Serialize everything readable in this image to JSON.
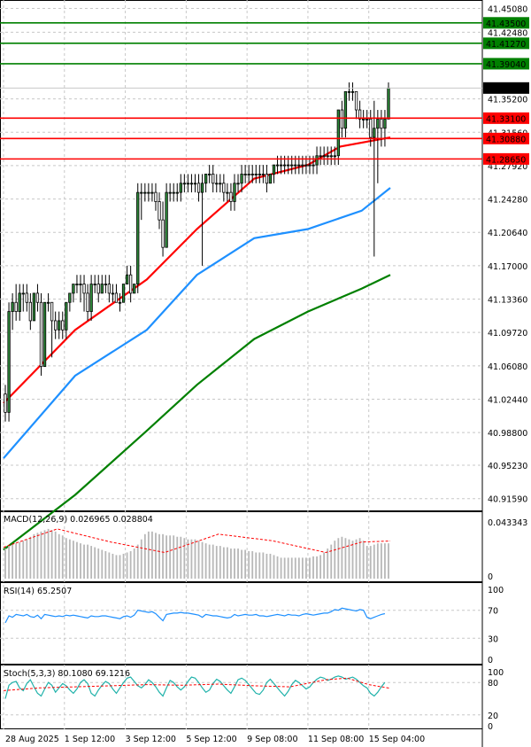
{
  "chart_data": [
    {
      "type": "candlestick",
      "panel": "price",
      "yticks": [
        41.4508,
        41.4248,
        41.352,
        41.3156,
        41.2792,
        41.2428,
        41.2064,
        41.17,
        41.1336,
        41.0972,
        41.0608,
        41.0244,
        40.988,
        40.9523,
        40.9159
      ],
      "yticks_text": [
        "41.45080",
        "41.42480",
        "41.35200",
        "41.31560",
        "41.27920",
        "41.24280",
        "41.20640",
        "41.17000",
        "41.13360",
        "41.09720",
        "41.06080",
        "41.02440",
        "40.98800",
        "40.95230",
        "40.91590"
      ],
      "ylim": [
        40.904,
        41.458
      ],
      "xlim": [
        0,
        108
      ],
      "xticks": [
        {
          "x": 0,
          "label": "28 Aug 2025"
        },
        {
          "x": 17,
          "label": "1 Sep 12:00"
        },
        {
          "x": 34,
          "label": "3 Sep 12:00"
        },
        {
          "x": 51,
          "label": "5 Sep 12:00"
        },
        {
          "x": 68,
          "label": "9 Sep 08:00"
        },
        {
          "x": 85,
          "label": "11 Sep 08:00"
        },
        {
          "x": 102,
          "label": "15 Sep 04:00"
        }
      ],
      "levels": [
        {
          "value": 41.435,
          "label": "41.43500",
          "color": "#008000"
        },
        {
          "value": 41.4127,
          "label": "41.41270",
          "color": "#008000"
        },
        {
          "value": 41.3904,
          "label": "41.39040",
          "color": "#008000"
        },
        {
          "value": 41.331,
          "label": "41.33100",
          "color": "#ff0000"
        },
        {
          "value": 41.3088,
          "label": "41.30880",
          "color": "#ff0000"
        },
        {
          "value": 41.2865,
          "label": "41.28650",
          "color": "#ff0000"
        }
      ],
      "current_price": {
        "value": 41.3639,
        "label": "41.36390"
      },
      "candles": [
        [
          41.03,
          41.04,
          41.0,
          41.01
        ],
        [
          41.01,
          41.13,
          41.0,
          41.12
        ],
        [
          41.12,
          41.14,
          41.1,
          41.13
        ],
        [
          41.13,
          41.15,
          41.11,
          41.12
        ],
        [
          41.12,
          41.15,
          41.11,
          41.14
        ],
        [
          41.14,
          41.15,
          41.12,
          41.14
        ],
        [
          41.14,
          41.15,
          41.12,
          41.13
        ],
        [
          41.13,
          41.14,
          41.1,
          41.11
        ],
        [
          41.11,
          41.14,
          41.11,
          41.14
        ],
        [
          41.14,
          41.15,
          41.12,
          41.13
        ],
        [
          41.13,
          41.14,
          41.05,
          41.06
        ],
        [
          41.06,
          41.13,
          41.06,
          41.13
        ],
        [
          41.13,
          41.14,
          41.12,
          41.13
        ],
        [
          41.13,
          41.13,
          41.07,
          41.11
        ],
        [
          41.11,
          41.12,
          41.09,
          41.1
        ],
        [
          41.1,
          41.12,
          41.09,
          41.11
        ],
        [
          41.11,
          41.12,
          41.09,
          41.1
        ],
        [
          41.1,
          41.13,
          41.09,
          41.13
        ],
        [
          41.13,
          41.14,
          41.12,
          41.14
        ],
        [
          41.14,
          41.15,
          41.13,
          41.15
        ],
        [
          41.15,
          41.16,
          41.14,
          41.15
        ],
        [
          41.15,
          41.16,
          41.13,
          41.15
        ],
        [
          41.15,
          41.16,
          41.12,
          41.14
        ],
        [
          41.14,
          41.15,
          41.11,
          41.12
        ],
        [
          41.12,
          41.16,
          41.11,
          41.15
        ],
        [
          41.15,
          41.16,
          41.14,
          41.15
        ],
        [
          41.15,
          41.16,
          41.13,
          41.14
        ],
        [
          41.14,
          41.16,
          41.14,
          41.15
        ],
        [
          41.15,
          41.16,
          41.14,
          41.15
        ],
        [
          41.15,
          41.16,
          41.13,
          41.14
        ],
        [
          41.14,
          41.15,
          41.13,
          41.14
        ],
        [
          41.14,
          41.15,
          41.13,
          41.13
        ],
        [
          41.13,
          41.14,
          41.12,
          41.13
        ],
        [
          41.13,
          41.15,
          41.13,
          41.15
        ],
        [
          41.15,
          41.17,
          41.15,
          41.16
        ],
        [
          41.16,
          41.17,
          41.13,
          41.14
        ],
        [
          41.14,
          41.15,
          41.14,
          41.15
        ],
        [
          41.15,
          41.26,
          41.14,
          41.25
        ],
        [
          41.25,
          41.26,
          41.22,
          41.25
        ],
        [
          41.25,
          41.26,
          41.24,
          41.25
        ],
        [
          41.25,
          41.26,
          41.24,
          41.25
        ],
        [
          41.25,
          41.26,
          41.24,
          41.25
        ],
        [
          41.25,
          41.26,
          41.23,
          41.24
        ],
        [
          41.24,
          41.25,
          41.21,
          41.22
        ],
        [
          41.22,
          41.24,
          41.18,
          41.19
        ],
        [
          41.19,
          41.26,
          41.19,
          41.25
        ],
        [
          41.25,
          41.26,
          41.24,
          41.25
        ],
        [
          41.25,
          41.26,
          41.24,
          41.25
        ],
        [
          41.25,
          41.26,
          41.24,
          41.25
        ],
        [
          41.25,
          41.27,
          41.24,
          41.26
        ],
        [
          41.26,
          41.27,
          41.25,
          41.26
        ],
        [
          41.26,
          41.27,
          41.25,
          41.26
        ],
        [
          41.26,
          41.27,
          41.25,
          41.26
        ],
        [
          41.26,
          41.27,
          41.25,
          41.26
        ],
        [
          41.26,
          41.27,
          41.24,
          41.25
        ],
        [
          41.25,
          41.27,
          41.17,
          41.26
        ],
        [
          41.26,
          41.27,
          41.25,
          41.27
        ],
        [
          41.27,
          41.28,
          41.26,
          41.27
        ],
        [
          41.27,
          41.28,
          41.25,
          41.26
        ],
        [
          41.26,
          41.27,
          41.25,
          41.26
        ],
        [
          41.26,
          41.27,
          41.25,
          41.26
        ],
        [
          41.26,
          41.27,
          41.24,
          41.25
        ],
        [
          41.25,
          41.26,
          41.24,
          41.25
        ],
        [
          41.25,
          41.26,
          41.23,
          41.24
        ],
        [
          41.24,
          41.27,
          41.23,
          41.26
        ],
        [
          41.26,
          41.27,
          41.25,
          41.26
        ],
        [
          41.26,
          41.28,
          41.25,
          41.27
        ],
        [
          41.27,
          41.28,
          41.26,
          41.27
        ],
        [
          41.27,
          41.28,
          41.26,
          41.27
        ],
        [
          41.27,
          41.28,
          41.26,
          41.27
        ],
        [
          41.27,
          41.28,
          41.26,
          41.27
        ],
        [
          41.27,
          41.28,
          41.26,
          41.27
        ],
        [
          41.27,
          41.28,
          41.26,
          41.27
        ],
        [
          41.27,
          41.28,
          41.25,
          41.26
        ],
        [
          41.26,
          41.27,
          41.26,
          41.27
        ],
        [
          41.27,
          41.28,
          41.26,
          41.28
        ],
        [
          41.28,
          41.29,
          41.27,
          41.28
        ],
        [
          41.28,
          41.29,
          41.27,
          41.28
        ],
        [
          41.28,
          41.29,
          41.27,
          41.28
        ],
        [
          41.28,
          41.29,
          41.27,
          41.28
        ],
        [
          41.28,
          41.29,
          41.27,
          41.28
        ],
        [
          41.28,
          41.29,
          41.27,
          41.28
        ],
        [
          41.28,
          41.29,
          41.27,
          41.28
        ],
        [
          41.28,
          41.29,
          41.27,
          41.28
        ],
        [
          41.28,
          41.29,
          41.27,
          41.28
        ],
        [
          41.28,
          41.29,
          41.27,
          41.28
        ],
        [
          41.28,
          41.29,
          41.27,
          41.28
        ],
        [
          41.28,
          41.3,
          41.27,
          41.29
        ],
        [
          41.29,
          41.3,
          41.28,
          41.29
        ],
        [
          41.29,
          41.3,
          41.28,
          41.29
        ],
        [
          41.29,
          41.3,
          41.28,
          41.29
        ],
        [
          41.29,
          41.3,
          41.28,
          41.29
        ],
        [
          41.29,
          41.3,
          41.28,
          41.29
        ],
        [
          41.29,
          41.34,
          41.28,
          41.34
        ],
        [
          41.34,
          41.35,
          41.31,
          41.32
        ],
        [
          41.32,
          41.36,
          41.31,
          41.36
        ],
        [
          41.36,
          41.37,
          41.35,
          41.36
        ],
        [
          41.36,
          41.37,
          41.35,
          41.36
        ],
        [
          41.36,
          41.36,
          41.33,
          41.34
        ],
        [
          41.34,
          41.35,
          41.32,
          41.33
        ],
        [
          41.33,
          41.34,
          41.32,
          41.33
        ],
        [
          41.33,
          41.34,
          41.32,
          41.33
        ],
        [
          41.33,
          41.34,
          41.3,
          41.31
        ],
        [
          41.31,
          41.35,
          41.18,
          41.32
        ],
        [
          41.32,
          41.34,
          41.26,
          41.33
        ],
        [
          41.33,
          41.34,
          41.3,
          41.32
        ],
        [
          41.32,
          41.34,
          41.3,
          41.33
        ],
        [
          41.33,
          41.37,
          41.33,
          41.364
        ]
      ],
      "moving_averages": [
        {
          "color": "#ff0000",
          "points": [
            [
              0,
              41.02
            ],
            [
              20,
              41.1
            ],
            [
              40,
              41.155
            ],
            [
              54,
              41.21
            ],
            [
              70,
              41.265
            ],
            [
              85,
              41.28
            ],
            [
              94,
              41.3
            ],
            [
              108,
              41.31
            ]
          ]
        },
        {
          "color": "#1e90ff",
          "points": [
            [
              0,
              40.96
            ],
            [
              20,
              41.05
            ],
            [
              40,
              41.1
            ],
            [
              54,
              41.16
            ],
            [
              70,
              41.2
            ],
            [
              85,
              41.21
            ],
            [
              100,
              41.23
            ],
            [
              108,
              41.255
            ]
          ]
        },
        {
          "color": "#008000",
          "points": [
            [
              0,
              40.86
            ],
            [
              20,
              40.92
            ],
            [
              40,
              40.99
            ],
            [
              54,
              41.04
            ],
            [
              70,
              41.09
            ],
            [
              85,
              41.12
            ],
            [
              100,
              41.145
            ],
            [
              108,
              41.16
            ]
          ]
        }
      ]
    },
    {
      "type": "bar",
      "panel": "MACD",
      "title": "MACD(12,26,9) 0.026965 0.028804",
      "ylim": [
        0,
        0.043343
      ],
      "yticks_text": [
        "0.043343",
        "0"
      ],
      "histogram": [
        0.023,
        0.025,
        0.026,
        0.027,
        0.028,
        0.029,
        0.03,
        0.032,
        0.034,
        0.035,
        0.036,
        0.037,
        0.038,
        0.037,
        0.036,
        0.034,
        0.033,
        0.031,
        0.03,
        0.029,
        0.028,
        0.027,
        0.026,
        0.026,
        0.025,
        0.024,
        0.023,
        0.022,
        0.021,
        0.02,
        0.019,
        0.018,
        0.018,
        0.019,
        0.02,
        0.021,
        0.023,
        0.026,
        0.03,
        0.034,
        0.036,
        0.036,
        0.035,
        0.034,
        0.034,
        0.033,
        0.033,
        0.033,
        0.032,
        0.032,
        0.031,
        0.03,
        0.03,
        0.03,
        0.029,
        0.028,
        0.027,
        0.026,
        0.026,
        0.025,
        0.025,
        0.024,
        0.024,
        0.023,
        0.023,
        0.023,
        0.022,
        0.022,
        0.021,
        0.021,
        0.02,
        0.02,
        0.02,
        0.019,
        0.019,
        0.018,
        0.017,
        0.016,
        0.016,
        0.016,
        0.016,
        0.016,
        0.016,
        0.016,
        0.016,
        0.016,
        0.017,
        0.017,
        0.018,
        0.02,
        0.023,
        0.026,
        0.029,
        0.031,
        0.032,
        0.031,
        0.03,
        0.029,
        0.03,
        0.031,
        0.029,
        0.025,
        0.025,
        0.026,
        0.027,
        0.027,
        0.027,
        0.027
      ],
      "signal": [
        [
          0,
          0.024
        ],
        [
          15,
          0.038
        ],
        [
          30,
          0.028
        ],
        [
          45,
          0.02
        ],
        [
          60,
          0.034
        ],
        [
          75,
          0.029
        ],
        [
          90,
          0.02
        ],
        [
          100,
          0.028
        ],
        [
          108,
          0.0288
        ]
      ]
    },
    {
      "type": "line",
      "panel": "RSI",
      "title": "RSI(14) 65.2507",
      "ylim": [
        0,
        100
      ],
      "yticks": [
        0,
        30,
        70,
        100
      ],
      "values": [
        52,
        62,
        60,
        64,
        63,
        62,
        64,
        61,
        60,
        63,
        58,
        64,
        63,
        62,
        61,
        62,
        61,
        63,
        62,
        63,
        62,
        61,
        60,
        59,
        62,
        61,
        61,
        62,
        62,
        61,
        60,
        59,
        58,
        61,
        62,
        60,
        63,
        70,
        69,
        68,
        67,
        68,
        65,
        60,
        55,
        64,
        65,
        66,
        66,
        67,
        66,
        66,
        65,
        64,
        63,
        60,
        64,
        63,
        62,
        62,
        61,
        60,
        59,
        60,
        64,
        62,
        63,
        64,
        63,
        63,
        64,
        62,
        62,
        61,
        62,
        63,
        64,
        63,
        62,
        64,
        63,
        63,
        62,
        64,
        65,
        64,
        63,
        64,
        65,
        66,
        66,
        68,
        71,
        70,
        73,
        72,
        71,
        70,
        69,
        71,
        70,
        60,
        58,
        60,
        62,
        64,
        65.25
      ]
    },
    {
      "type": "line",
      "panel": "Stochastic",
      "title": "Stoch(5,3,3) 80.1080 69.1216",
      "ylim": [
        0,
        100
      ],
      "yticks": [
        0,
        20,
        80,
        100
      ],
      "main": [
        50,
        75,
        80,
        82,
        70,
        65,
        78,
        85,
        72,
        60,
        55,
        68,
        80,
        75,
        62,
        70,
        78,
        74,
        66,
        60,
        68,
        80,
        85,
        78,
        60,
        55,
        66,
        75,
        82,
        78,
        68,
        60,
        70,
        80,
        88,
        90,
        82,
        74,
        70,
        76,
        85,
        80,
        72,
        62,
        55,
        70,
        84,
        80,
        72,
        66,
        72,
        82,
        90,
        88,
        80,
        70,
        62,
        66,
        78,
        86,
        82,
        74,
        66,
        60,
        72,
        85,
        88,
        84,
        76,
        68,
        60,
        58,
        66,
        80,
        86,
        78,
        70,
        62,
        55,
        64,
        76,
        84,
        80,
        74,
        68,
        72,
        80,
        86,
        90,
        88,
        84,
        86,
        90,
        92,
        90,
        86,
        88,
        90,
        86,
        80,
        74,
        70,
        60,
        55,
        62,
        72,
        80.11
      ],
      "signal": [
        [
          0,
          65
        ],
        [
          10,
          70
        ],
        [
          20,
          72
        ],
        [
          30,
          74
        ],
        [
          40,
          76
        ],
        [
          50,
          75
        ],
        [
          60,
          77
        ],
        [
          70,
          74
        ],
        [
          80,
          72
        ],
        [
          90,
          85
        ],
        [
          96,
          88
        ],
        [
          102,
          76
        ],
        [
          108,
          69.12
        ]
      ]
    }
  ]
}
